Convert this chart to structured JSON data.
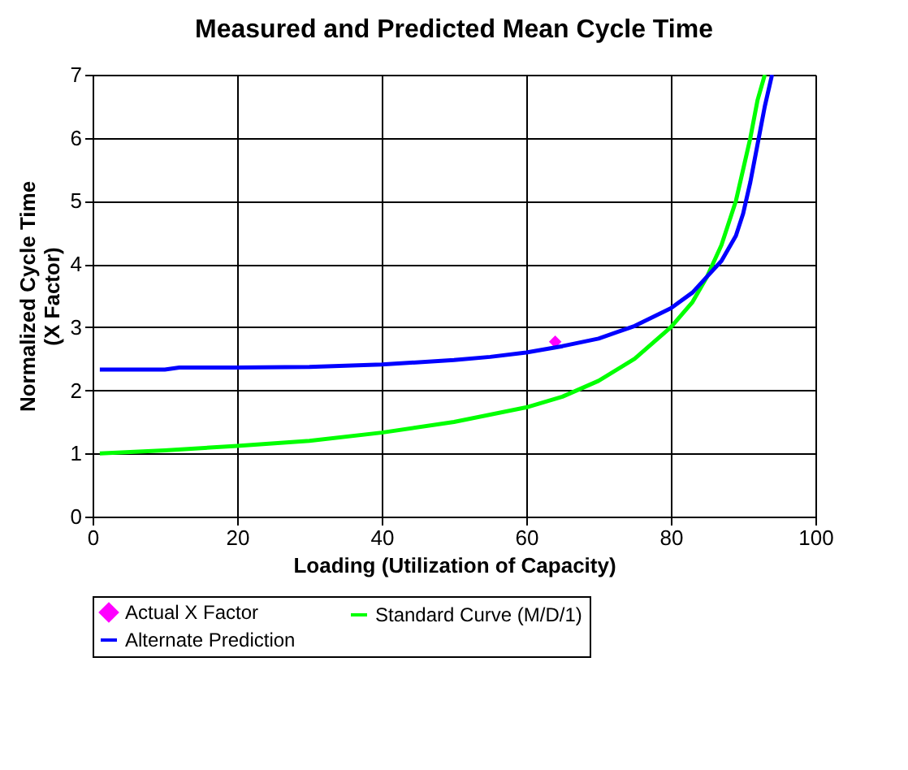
{
  "chart_data": {
    "type": "line",
    "title": "Measured and Predicted Mean Cycle Time",
    "xlabel": "Loading (Utilization of Capacity)",
    "ylabel": "Normalized Cycle Time\n(X Factor)",
    "xlim": [
      0,
      100
    ],
    "xticks": [
      0,
      20,
      40,
      60,
      80,
      100
    ],
    "ylim": [
      0,
      7
    ],
    "yticks": [
      0,
      1,
      2,
      3,
      4,
      5,
      6,
      7
    ],
    "grid": true,
    "legend": "bottom",
    "series": [
      {
        "name": "Actual X Factor",
        "type": "scatter",
        "marker": "diamond",
        "color": "#ff00ff",
        "x": [
          64
        ],
        "values": [
          2.77
        ]
      },
      {
        "name": "Standard Curve (M/D/1)",
        "color": "#00ff00",
        "x": [
          1,
          10,
          20,
          30,
          40,
          50,
          60,
          65,
          70,
          75,
          80,
          83,
          85,
          87,
          89,
          90,
          91,
          92,
          93
        ],
        "values": [
          1.0,
          1.05,
          1.12,
          1.2,
          1.33,
          1.5,
          1.73,
          1.9,
          2.15,
          2.5,
          3.0,
          3.4,
          3.8,
          4.3,
          5.0,
          5.5,
          6.0,
          6.6,
          7.0
        ]
      },
      {
        "name": "Alternate Prediction",
        "color": "#0000ff",
        "x": [
          1,
          10,
          12,
          20,
          30,
          40,
          50,
          55,
          60,
          65,
          70,
          75,
          80,
          83,
          85,
          87,
          89,
          90,
          91,
          92,
          93,
          94
        ],
        "values": [
          2.33,
          2.33,
          2.36,
          2.36,
          2.37,
          2.41,
          2.48,
          2.53,
          2.6,
          2.7,
          2.82,
          3.02,
          3.3,
          3.55,
          3.8,
          4.05,
          4.45,
          4.8,
          5.3,
          5.9,
          6.5,
          7.0
        ]
      }
    ]
  }
}
